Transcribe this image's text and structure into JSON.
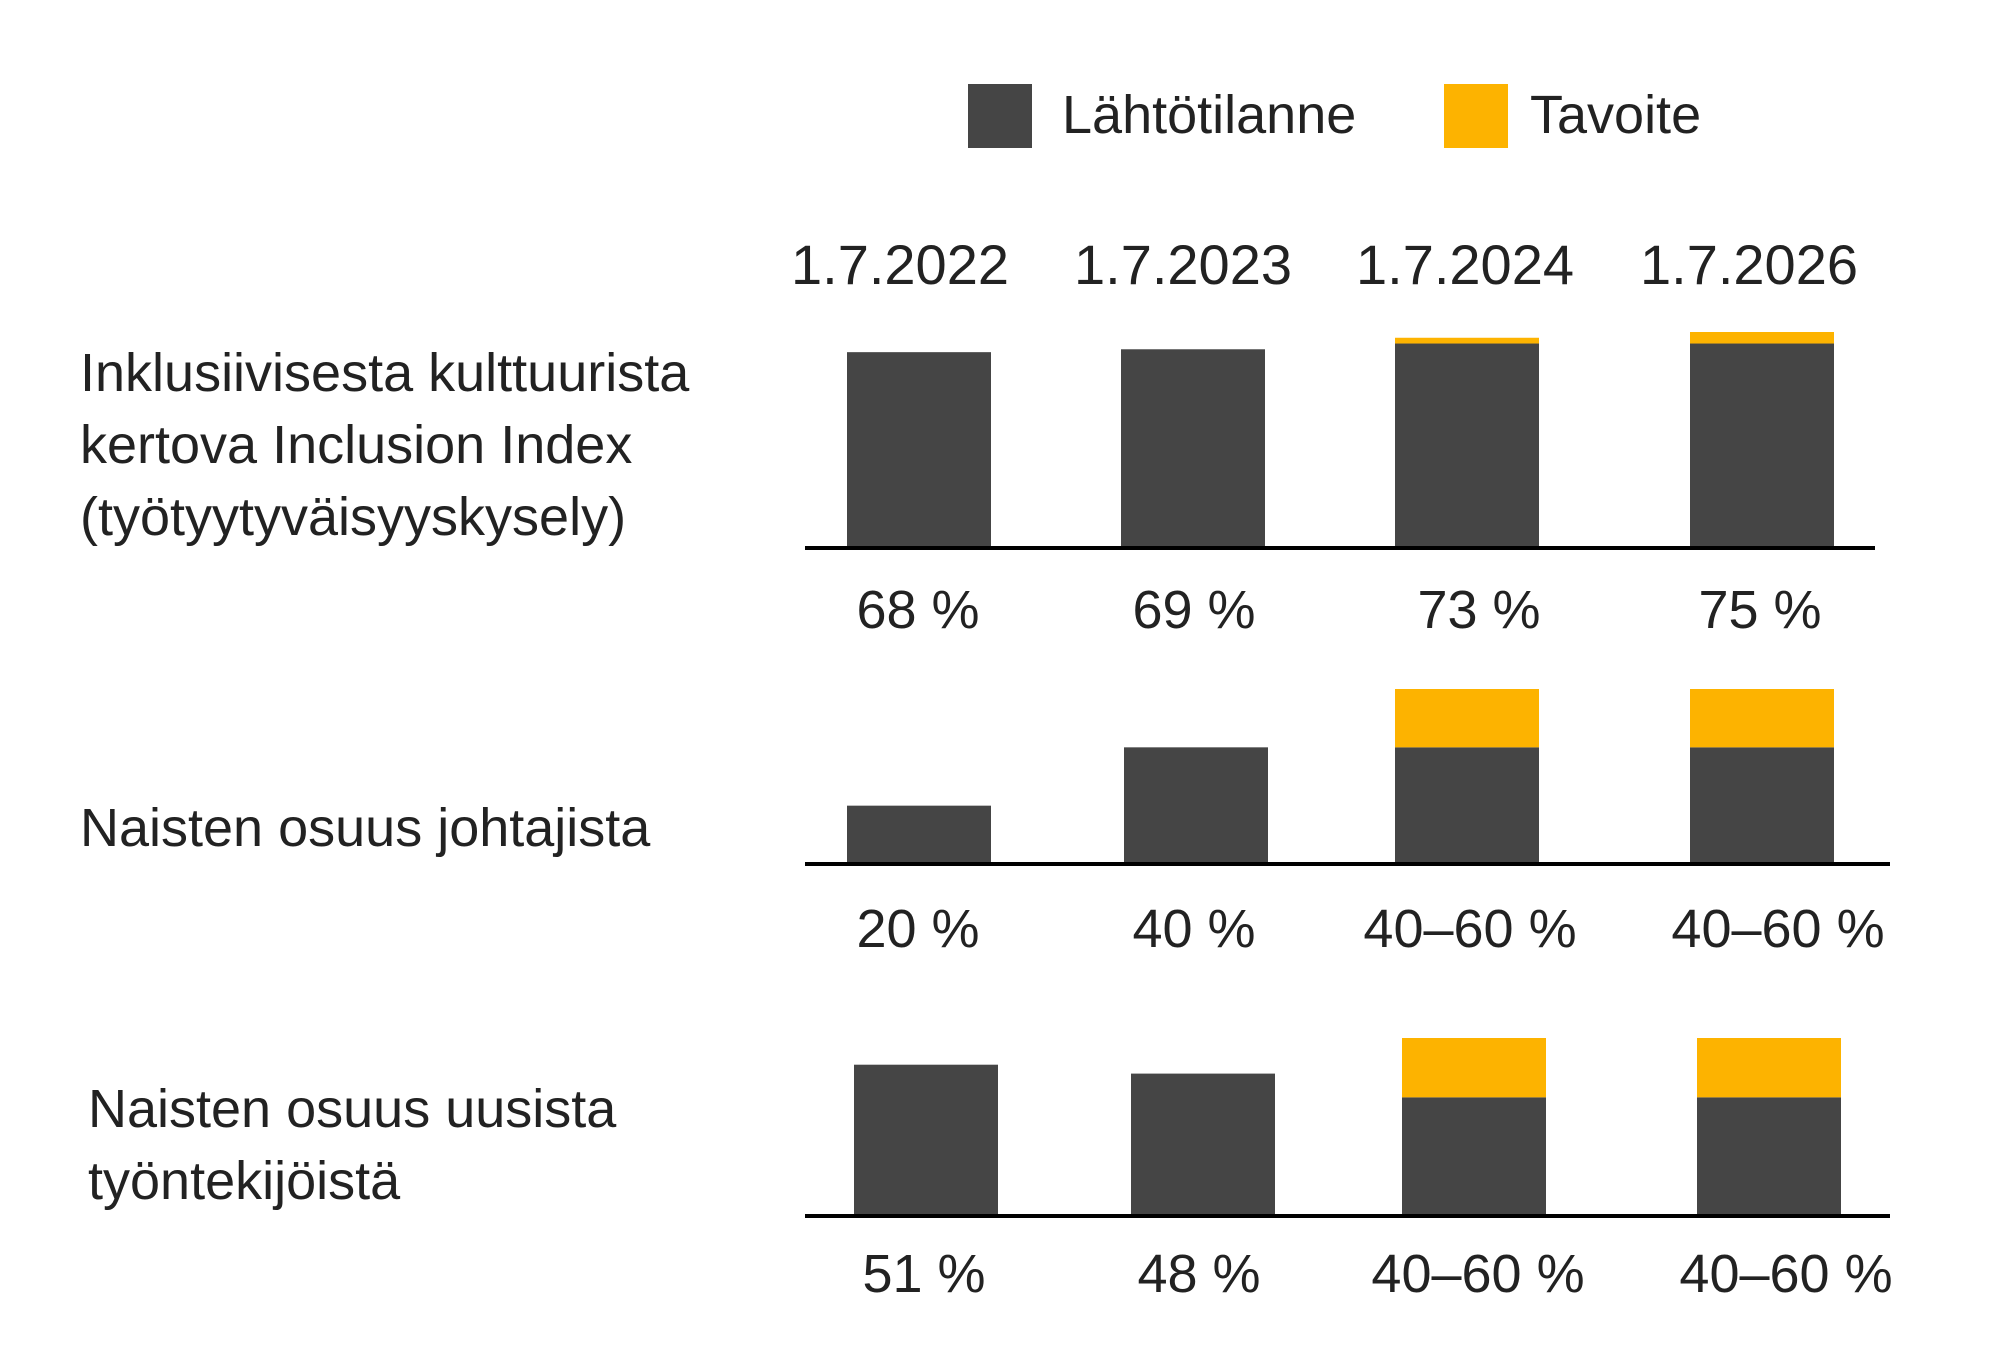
{
  "legend": {
    "baseline_label": "Lähtötilanne",
    "target_label": "Tavoite"
  },
  "colors": {
    "baseline": "#454545",
    "target": "#FDB300",
    "axis": "#000000",
    "text": "#222222"
  },
  "chart_data": {
    "type": "bar",
    "stacked": true,
    "categories": [
      "1.7.2022",
      "1.7.2023",
      "1.7.2024",
      "1.7.2026"
    ],
    "legend_position": "top-right",
    "grid": false,
    "rows": [
      {
        "label_lines": [
          "Inklusiivisesta kulttuurista",
          "kertova Inclusion Index",
          "(työtyytyväisyyskysely)"
        ],
        "series": [
          {
            "name": "Lähtötilanne",
            "values": [
              68,
              69,
              71,
              71
            ]
          },
          {
            "name": "Tavoite",
            "values": [
              0,
              0,
              2,
              4
            ]
          }
        ],
        "ylim": [
          0,
          75
        ],
        "value_labels": [
          "68 %",
          "69 %",
          "73 %",
          "75 %"
        ]
      },
      {
        "label_lines": [
          "Naisten osuus johtajista"
        ],
        "series": [
          {
            "name": "Lähtötilanne",
            "values": [
              20,
              40,
              40,
              40
            ]
          },
          {
            "name": "Tavoite",
            "values": [
              0,
              0,
              20,
              20
            ]
          }
        ],
        "ylim": [
          0,
          60
        ],
        "value_labels": [
          "20 %",
          "40 %",
          "40–60 %",
          "40–60 %"
        ]
      },
      {
        "label_lines": [
          "Naisten osuus uusista",
          "työntekijöistä"
        ],
        "series": [
          {
            "name": "Lähtötilanne",
            "values": [
              51,
              48,
              40,
              40
            ]
          },
          {
            "name": "Tavoite",
            "values": [
              0,
              0,
              20,
              20
            ]
          }
        ],
        "ylim": [
          0,
          60
        ],
        "value_labels": [
          "51 %",
          "48 %",
          "40–60 %",
          "40–60 %"
        ]
      }
    ]
  }
}
